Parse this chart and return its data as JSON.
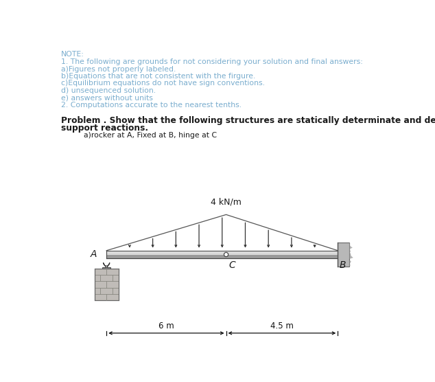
{
  "bg_color": "#ffffff",
  "text_color_blue": "#7aadce",
  "text_color_black": "#1a1a1a",
  "note_title": "NOTE:",
  "note_lines": [
    "1. The following are grounds for not considering your solution and final answers:",
    "a)Figures not properly labeled.",
    "b)Equations that are not consistent with the firgure.",
    "c)Equilibrium equations do not have sign conventions.",
    "d) unsequenced solution.",
    "e) answers without units",
    "2. Computations accurate to the nearest tenths."
  ],
  "problem_line1": "Problem . Show that the following structures are statically determinate and determine the",
  "problem_line2": "support reactions.",
  "sub_label": "a)rocker at A, Fixed at B, hinge at C",
  "load_label": "4 kN/m",
  "dim1_label": "6 m",
  "dim2_label": "4.5 m",
  "A_label": "A",
  "B_label": "B",
  "C_label": "C",
  "beam_color_top": "#e0e0e0",
  "beam_color_bot": "#aaaaaa",
  "wall_color": "#b8b8b8",
  "brick_color": "#b0b0b0",
  "line_color": "#555555"
}
